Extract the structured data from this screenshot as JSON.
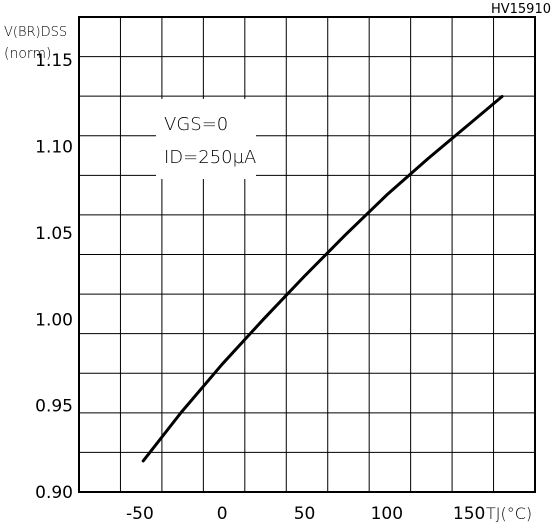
{
  "figure_id": "HV15910",
  "chart_data": {
    "type": "line",
    "ylabel_top": "V(BR)DSS",
    "ylabel_bottom": "(norm)",
    "xlabel": "TJ(°C)",
    "xlim": [
      -87,
      190
    ],
    "ylim": [
      0.9,
      1.175
    ],
    "x_ticks": [
      -50,
      0,
      50,
      100,
      150
    ],
    "x_tick_labels": [
      "-50",
      "0",
      "50",
      "100",
      "150"
    ],
    "y_ticks": [
      0.9,
      0.95,
      1.0,
      1.05,
      1.1,
      1.15
    ],
    "y_tick_labels": [
      "0.90",
      "0.95",
      "1.00",
      "1.05",
      "1.10",
      "1.15"
    ],
    "grid": true,
    "annotation": {
      "line1": "VGS=0",
      "line2": "ID=250µA"
    },
    "series": [
      {
        "x": [
          -48,
          -25,
          0,
          25,
          50,
          75,
          100,
          125,
          150,
          170
        ],
        "y": [
          0.918,
          0.946,
          0.974,
          1.0,
          1.025,
          1.049,
          1.072,
          1.093,
          1.113,
          1.129
        ]
      }
    ]
  }
}
